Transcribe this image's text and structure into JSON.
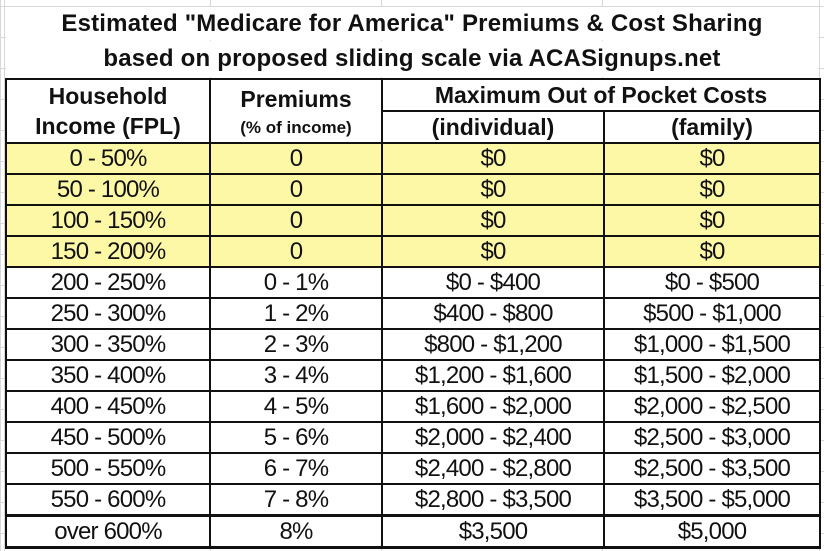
{
  "title_line1": "Estimated \"Medicare for America\" Premiums & Cost Sharing",
  "title_line2": "based on proposed sliding scale via ACASignups.net",
  "headers": {
    "income_line1": "Household",
    "income_line2": "Income (FPL)",
    "premiums_line1": "Premiums",
    "premiums_line2": "(% of income)",
    "moop": "Maximum Out of Pocket Costs",
    "individual": "(individual)",
    "family": "(family)"
  },
  "highlight_color": "#fdf8a6",
  "rows": [
    {
      "income": "0 - 50%",
      "premium": "0",
      "individual": "$0",
      "family": "$0",
      "highlight": true
    },
    {
      "income": "50 - 100%",
      "premium": "0",
      "individual": "$0",
      "family": "$0",
      "highlight": true
    },
    {
      "income": "100 - 150%",
      "premium": "0",
      "individual": "$0",
      "family": "$0",
      "highlight": true
    },
    {
      "income": "150 - 200%",
      "premium": "0",
      "individual": "$0",
      "family": "$0",
      "highlight": true
    },
    {
      "income": "200 - 250%",
      "premium": "0 - 1%",
      "individual": "$0 - $400",
      "family": "$0 - $500"
    },
    {
      "income": "250 - 300%",
      "premium": "1 - 2%",
      "individual": "$400 - $800",
      "family": "$500 - $1,000"
    },
    {
      "income": "300 - 350%",
      "premium": "2 - 3%",
      "individual": "$800 - $1,200",
      "family": "$1,000 - $1,500"
    },
    {
      "income": "350 - 400%",
      "premium": "3 - 4%",
      "individual": "$1,200 - $1,600",
      "family": "$1,500 - $2,000"
    },
    {
      "income": "400 - 450%",
      "premium": "4 - 5%",
      "individual": "$1,600 - $2,000",
      "family": "$2,000 - $2,500"
    },
    {
      "income": "450 - 500%",
      "premium": "5 - 6%",
      "individual": "$2,000 - $2,400",
      "family": "$2,500 - $3,000"
    },
    {
      "income": "500 - 550%",
      "premium": "6 - 7%",
      "individual": "$2,400 - $2,800",
      "family": "$2,500 - $3,500"
    },
    {
      "income": "550 - 600%",
      "premium": "7 - 8%",
      "individual": "$2,800 - $3,500",
      "family": "$3,500 - $5,000"
    },
    {
      "income": "over 600%",
      "premium": "8%",
      "individual": "$3,500",
      "family": "$5,000"
    }
  ]
}
